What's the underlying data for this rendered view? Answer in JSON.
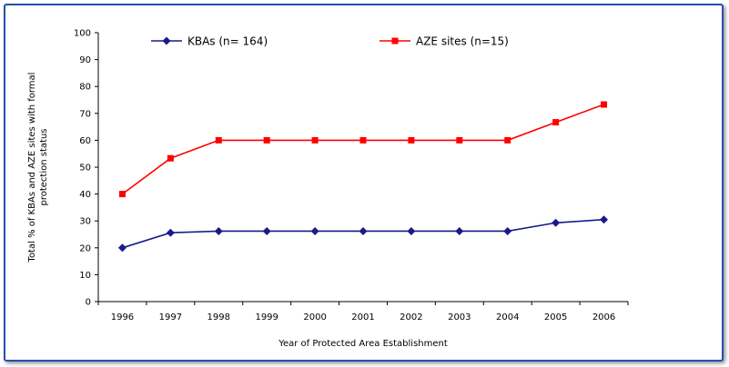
{
  "chart_data": {
    "type": "line",
    "title": "",
    "xlabel": "Year of Protected Area Establishment",
    "ylabel_line1": "Total % of KBAs and AZE sites with formal",
    "ylabel_line2": "protection status",
    "categories": [
      "1996",
      "1997",
      "1998",
      "1999",
      "2000",
      "2001",
      "2002",
      "2003",
      "2004",
      "2005",
      "2006"
    ],
    "ylim": [
      0,
      100
    ],
    "yticks": [
      0,
      10,
      20,
      30,
      40,
      50,
      60,
      70,
      80,
      90,
      100
    ],
    "grid": false,
    "legend_position": "top",
    "series": [
      {
        "name": "KBAs (n= 164)",
        "color": "#1a1a8c",
        "marker": "diamond",
        "values": [
          20,
          25.6,
          26.2,
          26.2,
          26.2,
          26.2,
          26.2,
          26.2,
          26.2,
          29.3,
          30.5
        ]
      },
      {
        "name": "AZE sites (n=15)",
        "color": "#ff0000",
        "marker": "square",
        "values": [
          40,
          53.3,
          60,
          60,
          60,
          60,
          60,
          60,
          60,
          66.7,
          73.3
        ]
      }
    ]
  }
}
